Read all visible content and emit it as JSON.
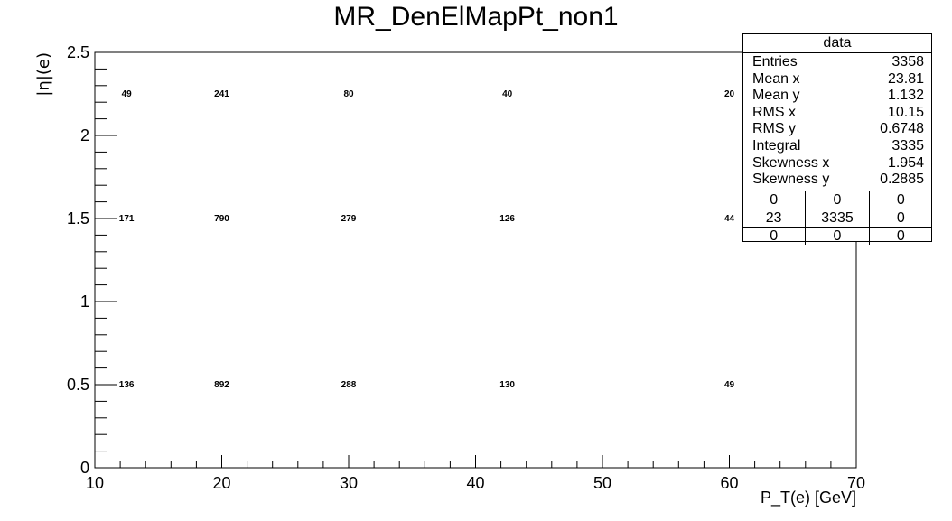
{
  "chart_data": {
    "type": "heatmap",
    "title": "MR_DenElMapPt_non1",
    "xlabel": "P_T(e) [GeV]",
    "ylabel": "|η|(e)",
    "xlim": [
      10,
      70
    ],
    "ylim": [
      0,
      2.5
    ],
    "x_ticks": [
      "10",
      "20",
      "30",
      "40",
      "50",
      "60",
      "70"
    ],
    "y_ticks": [
      "0",
      "0.5",
      "1",
      "1.5",
      "2",
      "2.5"
    ],
    "x_bin_edges": [
      10,
      15,
      25,
      35,
      50,
      70
    ],
    "y_bin_edges": [
      0,
      1,
      2,
      2.5
    ],
    "cells": [
      {
        "x": 12.5,
        "y": 0.5,
        "value": 136
      },
      {
        "x": 20,
        "y": 0.5,
        "value": 892
      },
      {
        "x": 30,
        "y": 0.5,
        "value": 288
      },
      {
        "x": 42.5,
        "y": 0.5,
        "value": 130
      },
      {
        "x": 60,
        "y": 0.5,
        "value": 49
      },
      {
        "x": 12.5,
        "y": 1.5,
        "value": 171
      },
      {
        "x": 20,
        "y": 1.5,
        "value": 790
      },
      {
        "x": 30,
        "y": 1.5,
        "value": 279
      },
      {
        "x": 42.5,
        "y": 1.5,
        "value": 126
      },
      {
        "x": 60,
        "y": 1.5,
        "value": 44
      },
      {
        "x": 12.5,
        "y": 2.25,
        "value": 49
      },
      {
        "x": 20,
        "y": 2.25,
        "value": 241
      },
      {
        "x": 30,
        "y": 2.25,
        "value": 80
      },
      {
        "x": 42.5,
        "y": 2.25,
        "value": 40
      },
      {
        "x": 60,
        "y": 2.25,
        "value": 20
      }
    ],
    "grid": false,
    "draw_option": "TEXT",
    "stats": {
      "name": "data",
      "rows": [
        {
          "label": "Entries",
          "value": "3358"
        },
        {
          "label": "Mean x",
          "value": "23.81"
        },
        {
          "label": "Mean y",
          "value": "1.132"
        },
        {
          "label": "RMS x",
          "value": "10.15"
        },
        {
          "label": "RMS y",
          "value": "0.6748"
        },
        {
          "label": "Integral",
          "value": "3335"
        },
        {
          "label": "Skewness x",
          "value": "1.954"
        },
        {
          "label": "Skewness y",
          "value": "0.2885"
        }
      ],
      "overflow_grid": [
        [
          "0",
          "0",
          "0"
        ],
        [
          "23",
          "3335",
          "0"
        ],
        [
          "0",
          "0",
          "0"
        ]
      ]
    }
  }
}
